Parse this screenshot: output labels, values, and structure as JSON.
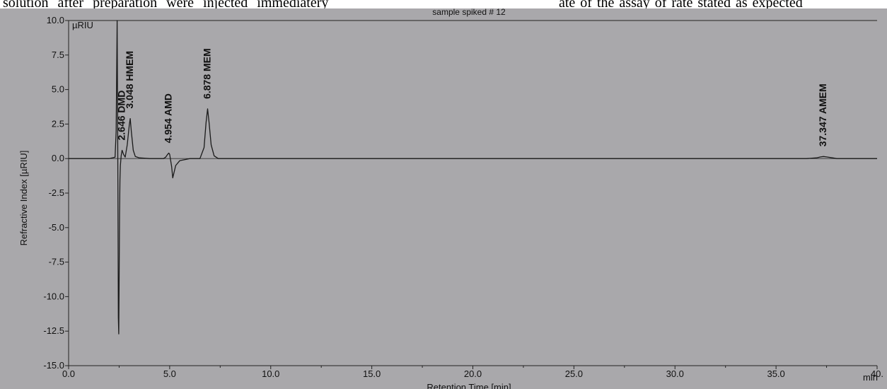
{
  "header": {
    "left_text": "solution after preparation were injected immediatery",
    "right_text": "ate of the assay of        rate stated as expected"
  },
  "chart_data": {
    "type": "line",
    "title": "sample spiked # 12",
    "xlabel": "Retention Time [min]",
    "ylabel": "Refractive Index [µRIU]",
    "y_unit_label": "µRIU",
    "x_unit_label": "min",
    "xlim": [
      0,
      40
    ],
    "ylim": [
      -15,
      10
    ],
    "x_ticks": [
      0,
      5,
      10,
      15,
      20,
      25,
      30,
      35,
      40
    ],
    "x_tick_labels": [
      "0.0",
      "5.0",
      "10.0",
      "15.0",
      "20.0",
      "25.0",
      "30.0",
      "35.0",
      "40."
    ],
    "y_ticks": [
      10,
      7.5,
      5,
      2.5,
      0,
      -2.5,
      -5,
      -7.5,
      -10,
      -12.5,
      -15
    ],
    "y_tick_labels": [
      "10.0",
      "7.5",
      "5.0",
      "2.5",
      "0.0",
      "-2.5",
      "-5.0",
      "-7.5",
      "-10.0",
      "-12.5",
      "-15.0"
    ],
    "grid": false,
    "series": [
      {
        "color": "#1a1a1a",
        "x": [
          0.0,
          2.0,
          2.3,
          2.35,
          2.4,
          2.42,
          2.44,
          2.46,
          2.48,
          2.5,
          2.52,
          2.54,
          2.56,
          2.6,
          2.646,
          2.72,
          2.8,
          2.9,
          3.0,
          3.048,
          3.1,
          3.2,
          3.3,
          3.5,
          4.0,
          4.7,
          4.8,
          4.9,
          4.954,
          5.0,
          5.1,
          5.15,
          5.2,
          5.3,
          5.5,
          6.0,
          6.5,
          6.7,
          6.8,
          6.878,
          6.95,
          7.05,
          7.2,
          7.4,
          8.0,
          15.0,
          20.0,
          25.0,
          30.0,
          36.5,
          37.0,
          37.2,
          37.347,
          37.5,
          37.8,
          38.0,
          40.0
        ],
        "y": [
          0.0,
          0.0,
          0.1,
          2.0,
          10.0,
          4.0,
          -2.0,
          -11.5,
          -12.7,
          -9.0,
          -4.0,
          -1.5,
          -0.5,
          0.2,
          0.6,
          0.3,
          0.1,
          1.0,
          2.4,
          2.9,
          2.0,
          0.6,
          0.15,
          0.05,
          0.0,
          0.0,
          0.1,
          0.3,
          0.4,
          0.3,
          -0.6,
          -1.4,
          -1.1,
          -0.5,
          -0.15,
          0.0,
          0.0,
          0.8,
          2.6,
          3.6,
          2.6,
          1.0,
          0.2,
          0.0,
          0.0,
          0.0,
          0.0,
          0.0,
          0.0,
          0.0,
          0.05,
          0.12,
          0.15,
          0.12,
          0.05,
          0.0,
          0.0
        ]
      }
    ],
    "peaks": [
      {
        "label": "2.646  DMD",
        "x": 2.646,
        "y": 0.6
      },
      {
        "label": "3.048  HMEM",
        "x": 3.048,
        "y": 2.9
      },
      {
        "label": "4.954  AMD",
        "x": 4.954,
        "y": 0.4
      },
      {
        "label": "6.878  MEM",
        "x": 6.878,
        "y": 3.6
      },
      {
        "label": "37.347  AMEM",
        "x": 37.347,
        "y": 0.15
      }
    ]
  }
}
